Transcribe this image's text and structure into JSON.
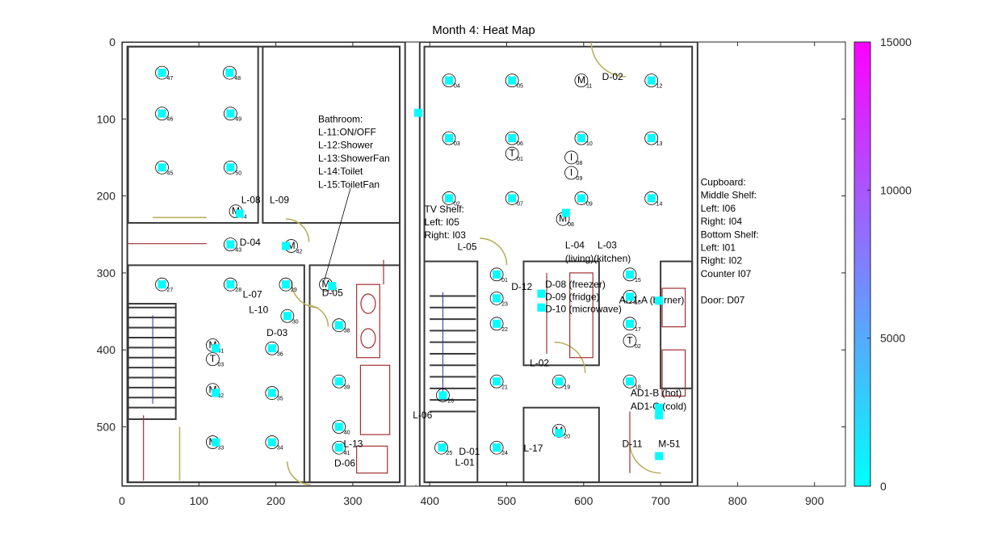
{
  "colors": {
    "low": "#00ffff",
    "high": "#ff00ff",
    "axis": "#262626"
  },
  "chart_data": {
    "type": "heatmap",
    "title": "Month 4: Heat Map",
    "xlim": [
      0,
      940
    ],
    "ylim": [
      575,
      0
    ],
    "x_ticks": [
      "0",
      "100",
      "200",
      "300",
      "400",
      "500",
      "600",
      "700",
      "800",
      "900"
    ],
    "y_ticks": [
      "0",
      "100",
      "200",
      "300",
      "400",
      "500"
    ],
    "colorbar": {
      "min": 0,
      "max": 15000,
      "ticks": [
        "0",
        "5000",
        "10000",
        "15000"
      ],
      "colormap": "cool"
    },
    "points": [
      {
        "x": 52,
        "y": 40,
        "v": 0
      },
      {
        "x": 140,
        "y": 40,
        "v": 0
      },
      {
        "x": 52,
        "y": 93,
        "v": 0
      },
      {
        "x": 141,
        "y": 93,
        "v": 0
      },
      {
        "x": 52,
        "y": 163,
        "v": 0
      },
      {
        "x": 141,
        "y": 163,
        "v": 0
      },
      {
        "x": 385,
        "y": 92,
        "v": 0
      },
      {
        "x": 425,
        "y": 50,
        "v": 0
      },
      {
        "x": 507,
        "y": 50,
        "v": 0
      },
      {
        "x": 688,
        "y": 50,
        "v": 0
      },
      {
        "x": 425,
        "y": 125,
        "v": 0
      },
      {
        "x": 507,
        "y": 125,
        "v": 0
      },
      {
        "x": 597,
        "y": 125,
        "v": 0
      },
      {
        "x": 688,
        "y": 125,
        "v": 0
      },
      {
        "x": 425,
        "y": 203,
        "v": 0
      },
      {
        "x": 507,
        "y": 203,
        "v": 0
      },
      {
        "x": 597,
        "y": 203,
        "v": 0
      },
      {
        "x": 688,
        "y": 203,
        "v": 0
      },
      {
        "x": 577,
        "y": 222,
        "v": 0
      },
      {
        "x": 153,
        "y": 223,
        "v": 0
      },
      {
        "x": 141,
        "y": 263,
        "v": 0
      },
      {
        "x": 213,
        "y": 265,
        "v": 0
      },
      {
        "x": 487,
        "y": 302,
        "v": 0
      },
      {
        "x": 660,
        "y": 302,
        "v": 0
      },
      {
        "x": 487,
        "y": 333,
        "v": 0
      },
      {
        "x": 660,
        "y": 331,
        "v": 0
      },
      {
        "x": 52,
        "y": 315,
        "v": 0
      },
      {
        "x": 141,
        "y": 315,
        "v": 0
      },
      {
        "x": 213,
        "y": 315,
        "v": 0
      },
      {
        "x": 273,
        "y": 317,
        "v": 0
      },
      {
        "x": 545,
        "y": 327,
        "v": 0
      },
      {
        "x": 545,
        "y": 345,
        "v": 0
      },
      {
        "x": 698,
        "y": 336,
        "v": 0
      },
      {
        "x": 215,
        "y": 356,
        "v": 0
      },
      {
        "x": 282,
        "y": 368,
        "v": 0
      },
      {
        "x": 487,
        "y": 366,
        "v": 0
      },
      {
        "x": 660,
        "y": 366,
        "v": 0
      },
      {
        "x": 122,
        "y": 398,
        "v": 0
      },
      {
        "x": 195,
        "y": 398,
        "v": 0
      },
      {
        "x": 282,
        "y": 441,
        "v": 0
      },
      {
        "x": 487,
        "y": 441,
        "v": 0
      },
      {
        "x": 568,
        "y": 441,
        "v": 0
      },
      {
        "x": 660,
        "y": 441,
        "v": 0
      },
      {
        "x": 122,
        "y": 456,
        "v": 0
      },
      {
        "x": 195,
        "y": 456,
        "v": 0
      },
      {
        "x": 417,
        "y": 459,
        "v": 0
      },
      {
        "x": 698,
        "y": 475,
        "v": 0
      },
      {
        "x": 698,
        "y": 485,
        "v": 0
      },
      {
        "x": 282,
        "y": 500,
        "v": 0
      },
      {
        "x": 568,
        "y": 508,
        "v": 0
      },
      {
        "x": 122,
        "y": 520,
        "v": 0
      },
      {
        "x": 195,
        "y": 520,
        "v": 0
      },
      {
        "x": 416,
        "y": 527,
        "v": 0
      },
      {
        "x": 282,
        "y": 527,
        "v": 0
      },
      {
        "x": 487,
        "y": 527,
        "v": 0
      },
      {
        "x": 698,
        "y": 538,
        "v": 0
      }
    ],
    "annotations": [
      {
        "text": "Bathroom:",
        "x": 255,
        "y": 100
      },
      {
        "text": "L-11:ON/OFF",
        "x": 255,
        "y": 117
      },
      {
        "text": "L-12:Shower",
        "x": 255,
        "y": 134
      },
      {
        "text": "L-13:ShowerFan",
        "x": 255,
        "y": 151
      },
      {
        "text": "L-14:Toilet",
        "x": 255,
        "y": 168
      },
      {
        "text": "L-15:ToiletFan",
        "x": 255,
        "y": 185
      },
      {
        "text": "L-08",
        "x": 155,
        "y": 205
      },
      {
        "text": "L-09",
        "x": 192,
        "y": 205
      },
      {
        "text": "D-04",
        "x": 153,
        "y": 260
      },
      {
        "text": "L-07",
        "x": 157,
        "y": 328
      },
      {
        "text": "L-10",
        "x": 165,
        "y": 348
      },
      {
        "text": "D-03",
        "x": 188,
        "y": 378
      },
      {
        "text": "D-05",
        "x": 260,
        "y": 326
      },
      {
        "text": "L-13",
        "x": 288,
        "y": 522
      },
      {
        "text": "D-06",
        "x": 276,
        "y": 547
      },
      {
        "text": "TV Shelf:",
        "x": 393,
        "y": 217
      },
      {
        "text": "Left: I05",
        "x": 393,
        "y": 234
      },
      {
        "text": "Right: I03",
        "x": 393,
        "y": 251
      },
      {
        "text": "L-05",
        "x": 436,
        "y": 266
      },
      {
        "text": "L-06",
        "x": 378,
        "y": 485
      },
      {
        "text": "D-01",
        "x": 438,
        "y": 532
      },
      {
        "text": "L-01",
        "x": 433,
        "y": 546
      },
      {
        "text": "L-17",
        "x": 522,
        "y": 528
      },
      {
        "text": "L-02",
        "x": 530,
        "y": 417
      },
      {
        "text": "D-02",
        "x": 624,
        "y": 45
      },
      {
        "text": "L-04",
        "x": 576,
        "y": 264
      },
      {
        "text": "L-03",
        "x": 618,
        "y": 264
      },
      {
        "text": "(living)(kitchen)",
        "x": 576,
        "y": 281
      },
      {
        "text": "D-12",
        "x": 506,
        "y": 318
      },
      {
        "text": "D-08 (freezer)",
        "x": 550,
        "y": 315
      },
      {
        "text": "D-09 (fridge)",
        "x": 550,
        "y": 331
      },
      {
        "text": "D-10 (microwave)",
        "x": 550,
        "y": 347
      },
      {
        "text": "AD1-A (burner)",
        "x": 646,
        "y": 335
      },
      {
        "text": "AD1-B (hot)",
        "x": 661,
        "y": 456
      },
      {
        "text": "AD1-C (cold)",
        "x": 661,
        "y": 473
      },
      {
        "text": "D-11",
        "x": 650,
        "y": 522
      },
      {
        "text": "M-51",
        "x": 697,
        "y": 522
      },
      {
        "text": "Cupboard:",
        "x": 752,
        "y": 182
      },
      {
        "text": "Middle Shelf:",
        "x": 752,
        "y": 199
      },
      {
        "text": "Left: I06",
        "x": 752,
        "y": 216
      },
      {
        "text": "Right: I04",
        "x": 752,
        "y": 233
      },
      {
        "text": "Bottom Shelf:",
        "x": 752,
        "y": 250
      },
      {
        "text": "Left: I01",
        "x": 752,
        "y": 267
      },
      {
        "text": "Right: I02",
        "x": 752,
        "y": 284
      },
      {
        "text": "Counter  I07",
        "x": 752,
        "y": 301
      },
      {
        "text": "Door: D07",
        "x": 752,
        "y": 335
      }
    ],
    "sensors": [
      {
        "kind": "M",
        "sub": "47",
        "x": 52,
        "y": 40
      },
      {
        "kind": "M",
        "sub": "48",
        "x": 140,
        "y": 40
      },
      {
        "kind": "M",
        "sub": "46",
        "x": 52,
        "y": 93
      },
      {
        "kind": "M",
        "sub": "49",
        "x": 141,
        "y": 93
      },
      {
        "kind": "M",
        "sub": "45",
        "x": 52,
        "y": 163
      },
      {
        "kind": "M",
        "sub": "50",
        "x": 141,
        "y": 163
      },
      {
        "kind": "M",
        "sub": "04",
        "x": 425,
        "y": 50
      },
      {
        "kind": "M",
        "sub": "05",
        "x": 507,
        "y": 50
      },
      {
        "kind": "M",
        "sub": "11",
        "x": 597,
        "y": 50
      },
      {
        "kind": "M",
        "sub": "12",
        "x": 688,
        "y": 50
      },
      {
        "kind": "M",
        "sub": "03",
        "x": 425,
        "y": 125
      },
      {
        "kind": "M",
        "sub": "06",
        "x": 507,
        "y": 125
      },
      {
        "kind": "M",
        "sub": "10",
        "x": 597,
        "y": 125
      },
      {
        "kind": "M",
        "sub": "13",
        "x": 688,
        "y": 125
      },
      {
        "kind": "T",
        "sub": "01",
        "x": 507,
        "y": 145
      },
      {
        "kind": "I",
        "sub": "08",
        "x": 584,
        "y": 150
      },
      {
        "kind": "I",
        "sub": "09",
        "x": 584,
        "y": 170
      },
      {
        "kind": "M",
        "sub": "02",
        "x": 425,
        "y": 203
      },
      {
        "kind": "M",
        "sub": "07",
        "x": 507,
        "y": 203
      },
      {
        "kind": "M",
        "sub": "09",
        "x": 597,
        "y": 203
      },
      {
        "kind": "M",
        "sub": "14",
        "x": 688,
        "y": 203
      },
      {
        "kind": "M",
        "sub": "08",
        "x": 573,
        "y": 230
      },
      {
        "kind": "M",
        "sub": "44",
        "x": 148,
        "y": 220
      },
      {
        "kind": "M",
        "sub": "43",
        "x": 141,
        "y": 263
      },
      {
        "kind": "M",
        "sub": "42",
        "x": 220,
        "y": 265
      },
      {
        "kind": "M",
        "sub": "01",
        "x": 487,
        "y": 302
      },
      {
        "kind": "M",
        "sub": "15",
        "x": 660,
        "y": 302
      },
      {
        "kind": "M",
        "sub": "23",
        "x": 487,
        "y": 333
      },
      {
        "kind": "M",
        "sub": "16",
        "x": 660,
        "y": 331
      },
      {
        "kind": "M",
        "sub": "27",
        "x": 52,
        "y": 315
      },
      {
        "kind": "M",
        "sub": "28",
        "x": 141,
        "y": 315
      },
      {
        "kind": "M",
        "sub": "29",
        "x": 213,
        "y": 315
      },
      {
        "kind": "M",
        "sub": "37",
        "x": 265,
        "y": 315
      },
      {
        "kind": "M",
        "sub": "30",
        "x": 215,
        "y": 356
      },
      {
        "kind": "M",
        "sub": "38",
        "x": 282,
        "y": 368
      },
      {
        "kind": "M",
        "sub": "22",
        "x": 487,
        "y": 366
      },
      {
        "kind": "M",
        "sub": "17",
        "x": 660,
        "y": 366
      },
      {
        "kind": "T",
        "sub": "02",
        "x": 660,
        "y": 388
      },
      {
        "kind": "M",
        "sub": "31",
        "x": 118,
        "y": 394
      },
      {
        "kind": "M",
        "sub": "36",
        "x": 195,
        "y": 398
      },
      {
        "kind": "T",
        "sub": "03",
        "x": 118,
        "y": 412
      },
      {
        "kind": "M",
        "sub": "39",
        "x": 282,
        "y": 441
      },
      {
        "kind": "M",
        "sub": "21",
        "x": 487,
        "y": 441
      },
      {
        "kind": "M",
        "sub": "19",
        "x": 568,
        "y": 441
      },
      {
        "kind": "M",
        "sub": "18",
        "x": 660,
        "y": 441
      },
      {
        "kind": "M",
        "sub": "32",
        "x": 118,
        "y": 452
      },
      {
        "kind": "M",
        "sub": "35",
        "x": 195,
        "y": 456
      },
      {
        "kind": "M",
        "sub": "26",
        "x": 417,
        "y": 459
      },
      {
        "kind": "M",
        "sub": "40",
        "x": 282,
        "y": 500
      },
      {
        "kind": "M",
        "sub": "20",
        "x": 568,
        "y": 505
      },
      {
        "kind": "M",
        "sub": "33",
        "x": 118,
        "y": 520
      },
      {
        "kind": "M",
        "sub": "34",
        "x": 195,
        "y": 520
      },
      {
        "kind": "M",
        "sub": "25",
        "x": 415,
        "y": 527
      },
      {
        "kind": "M",
        "sub": "41",
        "x": 282,
        "y": 527
      },
      {
        "kind": "M",
        "sub": "24",
        "x": 487,
        "y": 527
      }
    ]
  }
}
